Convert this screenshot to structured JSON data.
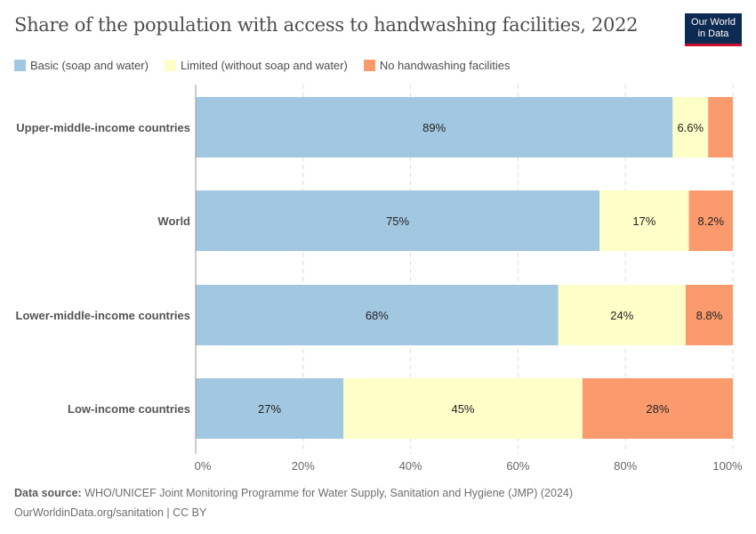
{
  "title": "Share of the population with access to handwashing facilities, 2022",
  "logo": {
    "line1": "Our World",
    "line2": "in Data"
  },
  "footer": {
    "source_label": "Data source:",
    "source_text": "WHO/UNICEF Joint Monitoring Programme for Water Supply, Sanitation and Hygiene (JMP) (2024)",
    "credit": "OurWorldinData.org/sanitation | CC BY"
  },
  "chart_data": {
    "type": "bar",
    "orientation": "horizontal",
    "stacked": true,
    "title": "Share of the population with access to handwashing facilities, 2022",
    "categories": [
      "Upper-middle-income countries",
      "World",
      "Lower-middle-income countries",
      "Low-income countries"
    ],
    "series": [
      {
        "name": "Basic (soap and water)",
        "color": "#a2c8e1",
        "values": [
          88.8,
          75.2,
          67.5,
          27.5
        ],
        "labels": [
          "89%",
          "75%",
          "68%",
          "27%"
        ]
      },
      {
        "name": "Limited (without soap and water)",
        "color": "#fefec8",
        "values": [
          6.6,
          16.6,
          23.7,
          44.5
        ],
        "labels": [
          "6.6%",
          "17%",
          "24%",
          "45%"
        ]
      },
      {
        "name": "No handwashing facilities",
        "color": "#fb9b6d",
        "values": [
          4.6,
          8.2,
          8.8,
          28.0
        ],
        "labels": [
          "",
          "8.2%",
          "8.8%",
          "28%"
        ]
      }
    ],
    "xlim": [
      0,
      100
    ],
    "xticks": [
      "0%",
      "20%",
      "40%",
      "60%",
      "80%",
      "100%"
    ],
    "grid": true,
    "legend_position": "top"
  }
}
